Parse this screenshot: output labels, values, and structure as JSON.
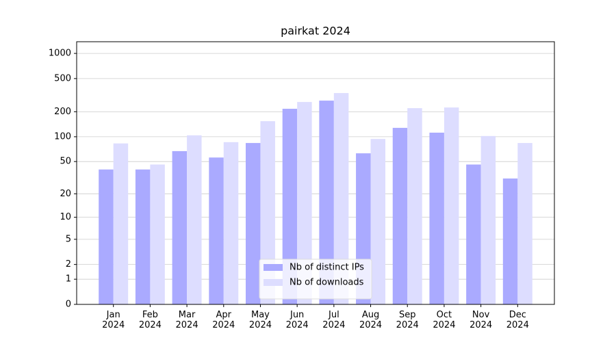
{
  "chart_data": {
    "type": "bar",
    "title": "pairkat 2024",
    "categories": [
      "Jan 2024",
      "Feb 2024",
      "Mar 2024",
      "Apr 2024",
      "May 2024",
      "Jun 2024",
      "Jul 2024",
      "Aug 2024",
      "Sep 2024",
      "Oct 2024",
      "Nov 2024",
      "Dec 2024"
    ],
    "series": [
      {
        "name": "Nb of distinct IPs",
        "color": "#aaaaff",
        "values": [
          40,
          40,
          67,
          56,
          84,
          217,
          272,
          63,
          128,
          112,
          46,
          31
        ]
      },
      {
        "name": "Nb of downloads",
        "color": "#ddddff",
        "values": [
          83,
          46,
          104,
          86,
          154,
          262,
          335,
          94,
          221,
          225,
          102,
          84
        ]
      }
    ],
    "yscale": "log1p",
    "ylim": [
      0,
      1380
    ],
    "yticks": [
      0,
      1,
      2,
      5,
      10,
      20,
      50,
      100,
      200,
      500,
      1000
    ],
    "grid": true,
    "legend": "lower center"
  }
}
